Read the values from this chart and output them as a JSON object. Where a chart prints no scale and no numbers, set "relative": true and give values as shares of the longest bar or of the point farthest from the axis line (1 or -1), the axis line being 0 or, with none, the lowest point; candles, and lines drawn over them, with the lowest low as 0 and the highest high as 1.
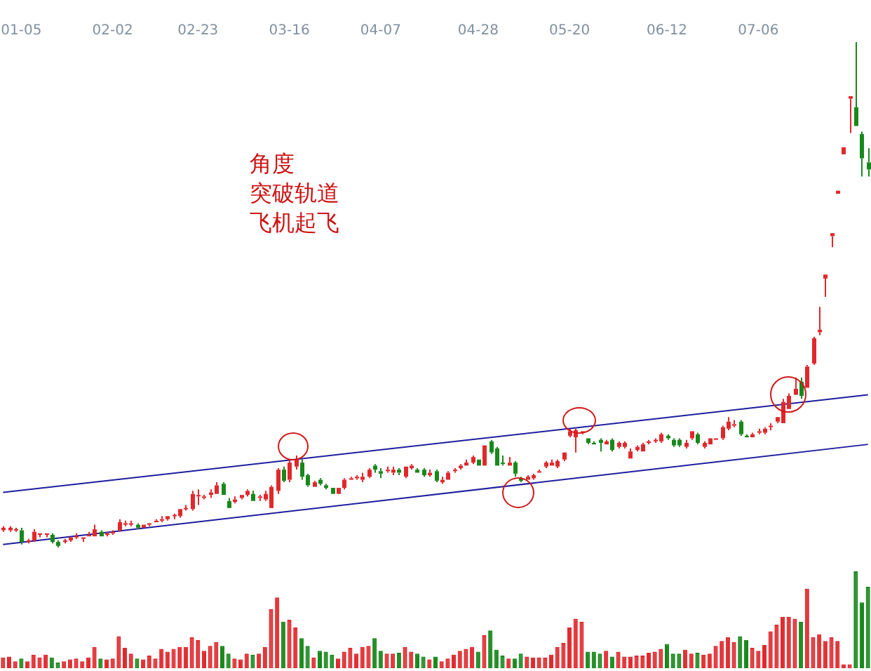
{
  "chart_data": [
    {
      "type": "candlestick",
      "relative": true,
      "annotations": [
        "角度",
        "突破轨道",
        "飞机起飞"
      ],
      "categories": [
        null,
        null,
        null,
        "01-05",
        null,
        null,
        null,
        null,
        null,
        null,
        null,
        null,
        null,
        null,
        null,
        null,
        null,
        null,
        "02-02",
        null,
        null,
        null,
        null,
        null,
        null,
        null,
        null,
        null,
        null,
        null,
        null,
        null,
        "02-23",
        null,
        null,
        null,
        null,
        null,
        null,
        null,
        null,
        null,
        null,
        null,
        null,
        null,
        null,
        "03-16",
        null,
        null,
        null,
        null,
        null,
        null,
        null,
        null,
        null,
        null,
        null,
        null,
        null,
        null,
        "04-07",
        null,
        null,
        null,
        null,
        null,
        null,
        null,
        null,
        null,
        null,
        null,
        null,
        null,
        null,
        null,
        "04-28",
        null,
        null,
        null,
        null,
        null,
        null,
        null,
        null,
        null,
        null,
        null,
        null,
        null,
        null,
        "05-20",
        null,
        null,
        null,
        null,
        null,
        null,
        null,
        null,
        null,
        null,
        null,
        null,
        null,
        null,
        null,
        "06-12",
        null,
        null,
        null,
        null,
        null,
        null,
        null,
        null,
        null,
        null,
        null,
        null,
        null,
        null,
        "07-06",
        null,
        null,
        null,
        null,
        null,
        null,
        null,
        null,
        null,
        null,
        null,
        null,
        null,
        null,
        null,
        null,
        null,
        null
      ],
      "ohlc": [
        [
          0.034,
          0.042,
          0.031,
          0.039
        ],
        [
          0.034,
          0.042,
          0.031,
          0.039
        ],
        [
          0.034,
          0.039,
          0.031,
          0.036
        ],
        [
          0.034,
          0.039,
          0.006,
          0.011
        ],
        [
          0.011,
          0.017,
          0.008,
          0.014
        ],
        [
          0.014,
          0.036,
          0.011,
          0.031
        ],
        [
          0.025,
          0.028,
          0.02,
          0.028
        ],
        [
          0.025,
          0.028,
          0.02,
          0.028
        ],
        [
          0.025,
          0.028,
          0.008,
          0.011
        ],
        [
          0.011,
          0.014,
          0,
          0.003
        ],
        [
          0.011,
          0.017,
          0.008,
          0.014
        ],
        [
          0.014,
          0.022,
          0.011,
          0.02
        ],
        [
          0.02,
          0.028,
          0.017,
          0.022
        ],
        [
          0.017,
          0.022,
          0.011,
          0.02
        ],
        [
          0.022,
          0.031,
          0.02,
          0.025
        ],
        [
          0.022,
          0.045,
          0.02,
          0.036
        ],
        [
          0.031,
          0.034,
          0.02,
          0.022
        ],
        [
          0.025,
          0.031,
          0.022,
          0.028
        ],
        [
          0.028,
          0.034,
          0.025,
          0.031
        ],
        [
          0.034,
          0.056,
          0.031,
          0.05
        ],
        [
          0.045,
          0.053,
          0.042,
          0.048
        ],
        [
          0.045,
          0.053,
          0.042,
          0.048
        ],
        [
          0.045,
          0.048,
          0.036,
          0.039
        ],
        [
          0.039,
          0.045,
          0.039,
          0.045
        ],
        [
          0.045,
          0.05,
          0.042,
          0.048
        ],
        [
          0.05,
          0.056,
          0.048,
          0.053
        ],
        [
          0.053,
          0.062,
          0.05,
          0.056
        ],
        [
          0.056,
          0.064,
          0.053,
          0.062
        ],
        [
          0.062,
          0.067,
          0.056,
          0.064
        ],
        [
          0.062,
          0.078,
          0.059,
          0.076
        ],
        [
          0.076,
          0.084,
          0.073,
          0.078
        ],
        [
          0.076,
          0.112,
          0.073,
          0.106
        ],
        [
          0.101,
          0.115,
          0.084,
          0.104
        ],
        [
          0.098,
          0.104,
          0.095,
          0.101
        ],
        [
          0.104,
          0.115,
          0.098,
          0.109
        ],
        [
          0.106,
          0.129,
          0.104,
          0.123
        ],
        [
          0.126,
          0.129,
          0.104,
          0.104
        ],
        [
          0.092,
          0.098,
          0.076,
          0.078
        ],
        [
          0.09,
          0.101,
          0.087,
          0.095
        ],
        [
          0.098,
          0.106,
          0.095,
          0.104
        ],
        [
          0.104,
          0.115,
          0.101,
          0.112
        ],
        [
          0.106,
          0.112,
          0.09,
          0.092
        ],
        [
          0.098,
          0.104,
          0.092,
          0.101
        ],
        [
          0.095,
          0.112,
          0.092,
          0.106
        ],
        [
          0.078,
          0.123,
          0.076,
          0.12
        ],
        [
          0.112,
          0.157,
          0.106,
          0.154
        ],
        [
          0.154,
          0.16,
          0.129,
          0.132
        ],
        [
          0.134,
          0.174,
          0.129,
          0.168
        ],
        [
          0.16,
          0.182,
          0.154,
          0.174
        ],
        [
          0.168,
          0.174,
          0.134,
          0.14
        ],
        [
          0.143,
          0.146,
          0.12,
          0.123
        ],
        [
          0.12,
          0.132,
          0.118,
          0.129
        ],
        [
          0.134,
          0.137,
          0.123,
          0.126
        ],
        [
          0.123,
          0.126,
          0.115,
          0.118
        ],
        [
          0.118,
          0.12,
          0.104,
          0.106
        ],
        [
          0.106,
          0.12,
          0.104,
          0.118
        ],
        [
          0.118,
          0.137,
          0.115,
          0.134
        ],
        [
          0.134,
          0.14,
          0.132,
          0.137
        ],
        [
          0.137,
          0.143,
          0.134,
          0.14
        ],
        [
          0.134,
          0.148,
          0.129,
          0.14
        ],
        [
          0.14,
          0.157,
          0.137,
          0.154
        ],
        [
          0.162,
          0.165,
          0.148,
          0.154
        ],
        [
          0.151,
          0.157,
          0.137,
          0.146
        ],
        [
          0.151,
          0.16,
          0.148,
          0.154
        ],
        [
          0.148,
          0.16,
          0.143,
          0.154
        ],
        [
          0.154,
          0.157,
          0.143,
          0.148
        ],
        [
          0.14,
          0.162,
          0.137,
          0.16
        ],
        [
          0.157,
          0.165,
          0.154,
          0.162
        ],
        [
          0.154,
          0.157,
          0.146,
          0.148
        ],
        [
          0.154,
          0.157,
          0.14,
          0.143
        ],
        [
          0.143,
          0.154,
          0.14,
          0.148
        ],
        [
          0.151,
          0.154,
          0.129,
          0.132
        ],
        [
          0.129,
          0.14,
          0.126,
          0.134
        ],
        [
          0.134,
          0.151,
          0.132,
          0.148
        ],
        [
          0.151,
          0.157,
          0.148,
          0.154
        ],
        [
          0.157,
          0.165,
          0.154,
          0.162
        ],
        [
          0.162,
          0.174,
          0.16,
          0.168
        ],
        [
          0.168,
          0.182,
          0.165,
          0.179
        ],
        [
          0.174,
          0.176,
          0.16,
          0.162
        ],
        [
          0.162,
          0.204,
          0.16,
          0.202
        ],
        [
          0.21,
          0.213,
          0.185,
          0.188
        ],
        [
          0.196,
          0.199,
          0.16,
          0.162
        ],
        [
          0.168,
          0.182,
          0.162,
          0.165
        ],
        [
          0.162,
          0.179,
          0.16,
          0.168
        ],
        [
          0.168,
          0.171,
          0.14,
          0.146
        ],
        [
          0.137,
          0.14,
          0.129,
          0.132
        ],
        [
          0.134,
          0.143,
          0.132,
          0.14
        ],
        [
          0.137,
          0.146,
          0.134,
          0.143
        ],
        [
          0.148,
          0.154,
          0.146,
          0.151
        ],
        [
          0.16,
          0.171,
          0.157,
          0.168
        ],
        [
          0.162,
          0.174,
          0.16,
          0.168
        ],
        [
          0.16,
          0.174,
          0.157,
          0.171
        ],
        [
          0.174,
          0.19,
          0.171,
          0.188
        ],
        [
          0.221,
          0.235,
          0.218,
          0.23
        ],
        [
          0.218,
          0.235,
          0.188,
          0.232
        ],
        [
          0.227,
          0.232,
          0.224,
          0.23
        ],
        [
          0.216,
          0.218,
          0.204,
          0.207
        ],
        [
          0.207,
          0.21,
          0.202,
          0.204
        ],
        [
          0.213,
          0.216,
          0.19,
          0.207
        ],
        [
          0.204,
          0.213,
          0.202,
          0.21
        ],
        [
          0.213,
          0.216,
          0.19,
          0.193
        ],
        [
          0.199,
          0.21,
          0.196,
          0.207
        ],
        [
          0.199,
          0.21,
          0.196,
          0.207
        ],
        [
          0.176,
          0.196,
          0.174,
          0.19
        ],
        [
          0.193,
          0.202,
          0.19,
          0.199
        ],
        [
          0.19,
          0.207,
          0.188,
          0.204
        ],
        [
          0.207,
          0.213,
          0.204,
          0.21
        ],
        [
          0.21,
          0.216,
          0.207,
          0.213
        ],
        [
          0.21,
          0.227,
          0.207,
          0.224
        ],
        [
          0.221,
          0.224,
          0.213,
          0.216
        ],
        [
          0.213,
          0.216,
          0.199,
          0.202
        ],
        [
          0.213,
          0.216,
          0.199,
          0.202
        ],
        [
          0.199,
          0.213,
          0.196,
          0.207
        ],
        [
          0.216,
          0.232,
          0.213,
          0.23
        ],
        [
          0.224,
          0.227,
          0.204,
          0.207
        ],
        [
          0.199,
          0.21,
          0.196,
          0.207
        ],
        [
          0.204,
          0.218,
          0.202,
          0.216
        ],
        [
          0.213,
          0.218,
          0.213,
          0.216
        ],
        [
          0.216,
          0.241,
          0.213,
          0.238
        ],
        [
          0.235,
          0.258,
          0.232,
          0.249
        ],
        [
          0.241,
          0.252,
          0.238,
          0.244
        ],
        [
          0.249,
          0.252,
          0.221,
          0.224
        ],
        [
          0.221,
          0.224,
          0.218,
          0.218
        ],
        [
          0.218,
          0.227,
          0.216,
          0.224
        ],
        [
          0.227,
          0.235,
          0.224,
          0.23
        ],
        [
          0.227,
          0.238,
          0.224,
          0.235
        ],
        [
          0.238,
          0.246,
          0.232,
          0.241
        ],
        [
          0.249,
          0.26,
          0.246,
          0.258
        ],
        [
          0.246,
          0.294,
          0.244,
          0.288
        ],
        [
          0.274,
          0.305,
          0.272,
          0.3
        ],
        [
          0.302,
          0.336,
          0.3,
          0.314
        ],
        [
          0.328,
          0.336,
          0.294,
          0.3
        ],
        [
          0.316,
          0.361,
          0.314,
          0.358
        ],
        [
          0.364,
          0.417,
          0.361,
          0.414
        ],
        [
          0.426,
          0.476,
          0.42,
          0.431
        ],
        [
          0.532,
          0.54,
          0.496,
          0.54
        ],
        [
          0.616,
          0.622,
          0.594,
          0.622
        ],
        [
          0.7,
          0.706,
          0.7,
          0.706
        ],
        [
          0.778,
          0.792,
          0.778,
          0.792
        ],
        [
          0.888,
          0.893,
          0.82,
          0.893
        ],
        [
          0.871,
          1,
          0.834,
          0.834
        ],
        [
          0.818,
          0.823,
          0.734,
          0.77
        ],
        [
          0.762,
          0.79,
          0.734,
          0.748
        ]
      ],
      "colors": [
        "#e0282c",
        "#e0282c",
        "#e0282c",
        "#18881c",
        "#e0282c",
        "#e0282c",
        "#e0282c",
        "#e0282c",
        "#18881c",
        "#18881c",
        "#e0282c",
        "#e0282c",
        "#e0282c",
        "#e0282c",
        "#e0282c",
        "#e0282c",
        "#18881c",
        "#e0282c",
        "#e0282c",
        "#e0282c",
        "#e0282c",
        "#e0282c",
        "#18881c",
        "#e0282c",
        "#e0282c",
        "#e0282c",
        "#e0282c",
        "#e0282c",
        "#e0282c",
        "#e0282c",
        "#e0282c",
        "#e0282c",
        "#e0282c",
        "#e0282c",
        "#e0282c",
        "#e0282c",
        "#18881c",
        "#18881c",
        "#e0282c",
        "#e0282c",
        "#e0282c",
        "#18881c",
        "#e0282c",
        "#e0282c",
        "#e0282c",
        "#e0282c",
        "#18881c",
        "#e0282c",
        "#e0282c",
        "#18881c",
        "#18881c",
        "#e0282c",
        "#18881c",
        "#18881c",
        "#18881c",
        "#e0282c",
        "#e0282c",
        "#e0282c",
        "#e0282c",
        "#e0282c",
        "#e0282c",
        "#18881c",
        "#18881c",
        "#e0282c",
        "#e0282c",
        "#18881c",
        "#e0282c",
        "#e0282c",
        "#18881c",
        "#18881c",
        "#e0282c",
        "#18881c",
        "#e0282c",
        "#e0282c",
        "#e0282c",
        "#e0282c",
        "#e0282c",
        "#e0282c",
        "#18881c",
        "#e0282c",
        "#18881c",
        "#18881c",
        "#18881c",
        "#e0282c",
        "#18881c",
        "#18881c",
        "#e0282c",
        "#e0282c",
        "#e0282c",
        "#e0282c",
        "#e0282c",
        "#e0282c",
        "#e0282c",
        "#e0282c",
        "#e0282c",
        "#e0282c",
        "#18881c",
        "#18881c",
        "#18881c",
        "#e0282c",
        "#18881c",
        "#e0282c",
        "#e0282c",
        "#e0282c",
        "#e0282c",
        "#e0282c",
        "#e0282c",
        "#e0282c",
        "#e0282c",
        "#18881c",
        "#18881c",
        "#18881c",
        "#e0282c",
        "#e0282c",
        "#18881c",
        "#e0282c",
        "#e0282c",
        "#e0282c",
        "#e0282c",
        "#e0282c",
        "#e0282c",
        "#18881c",
        "#18881c",
        "#e0282c",
        "#e0282c",
        "#e0282c",
        "#e0282c",
        "#e0282c",
        "#e0282c",
        "#e0282c",
        "#e0282c",
        "#18881c",
        "#e0282c",
        "#e0282c",
        "#e0282c",
        "#e0282c",
        "#e0282c",
        "#e0282c",
        "#e0282c",
        "#e0282c",
        "#18881c",
        "#18881c",
        "#18881c"
      ],
      "series": [
        {
          "type": "line",
          "color": "#1e1ea0",
          "values": [
            0.109,
            null,
            null,
            null,
            null,
            null,
            null,
            null,
            null,
            null,
            null,
            null,
            null,
            null,
            null,
            null,
            null,
            null,
            null,
            null,
            null,
            null,
            null,
            null,
            null,
            null,
            null,
            null,
            null,
            null,
            null,
            null,
            null,
            null,
            null,
            null,
            null,
            null,
            null,
            null,
            null,
            null,
            null,
            null,
            null,
            null,
            null,
            null,
            null,
            null,
            null,
            null,
            null,
            null,
            null,
            null,
            null,
            null,
            null,
            null,
            null,
            null,
            null,
            null,
            null,
            null,
            null,
            null,
            null,
            null,
            null,
            null,
            null,
            null,
            null,
            null,
            null,
            null,
            null,
            null,
            null,
            null,
            null,
            null,
            null,
            null,
            null,
            null,
            null,
            null,
            null,
            null,
            null,
            null,
            null,
            null,
            null,
            null,
            null,
            null,
            null,
            null,
            null,
            null,
            null,
            null,
            null,
            null,
            null,
            null,
            null,
            null,
            null,
            null,
            null,
            null,
            null,
            null,
            null,
            null,
            null,
            null,
            null,
            null,
            null,
            null,
            null,
            null,
            null,
            null,
            null,
            null,
            null,
            null,
            null,
            null,
            null,
            null,
            null,
            null,
            null,
            null,
            0.302
          ]
        },
        {
          "type": "line",
          "color": "#1e1ea0",
          "values": [
            0.006,
            null,
            null,
            null,
            null,
            null,
            null,
            null,
            null,
            null,
            null,
            null,
            null,
            null,
            null,
            null,
            null,
            null,
            null,
            null,
            null,
            null,
            null,
            null,
            null,
            null,
            null,
            null,
            null,
            null,
            null,
            null,
            null,
            null,
            null,
            null,
            null,
            null,
            null,
            null,
            null,
            null,
            null,
            null,
            null,
            null,
            null,
            null,
            null,
            null,
            null,
            null,
            null,
            null,
            null,
            null,
            null,
            null,
            null,
            null,
            null,
            null,
            null,
            null,
            null,
            null,
            null,
            null,
            null,
            null,
            null,
            null,
            null,
            null,
            null,
            null,
            null,
            null,
            null,
            null,
            null,
            null,
            null,
            null,
            null,
            null,
            null,
            null,
            null,
            null,
            null,
            null,
            null,
            null,
            null,
            null,
            null,
            null,
            null,
            null,
            null,
            null,
            null,
            null,
            null,
            null,
            null,
            null,
            null,
            null,
            null,
            null,
            null,
            null,
            null,
            null,
            null,
            null,
            null,
            null,
            null,
            null,
            null,
            null,
            null,
            null,
            null,
            null,
            null,
            null,
            null,
            null,
            null,
            null,
            null,
            null,
            null,
            null,
            null,
            null,
            null,
            null,
            0.204
          ]
        }
      ]
    },
    {
      "type": "bar",
      "relative": true,
      "categories": [
        null,
        null,
        null,
        null,
        null,
        null,
        null,
        null,
        null,
        null,
        null,
        null,
        null,
        null,
        null,
        null,
        null,
        null,
        null,
        null,
        null,
        null,
        null,
        null,
        null,
        null,
        null,
        null,
        null,
        null,
        null,
        null,
        null,
        null,
        null,
        null,
        null,
        null,
        null,
        null,
        null,
        null,
        null,
        null,
        null,
        null,
        null,
        null,
        null,
        null,
        null,
        null,
        null,
        null,
        null,
        null,
        null,
        null,
        null,
        null,
        null,
        null,
        null,
        null,
        null,
        null,
        null,
        null,
        null,
        null,
        null,
        null,
        null,
        null,
        null,
        null,
        null,
        null,
        null,
        null,
        null,
        null,
        null,
        null,
        null,
        null,
        null,
        null,
        null,
        null,
        null,
        null,
        null,
        null,
        null,
        null,
        null,
        null,
        null,
        null,
        null,
        null,
        null,
        null,
        null,
        null,
        null,
        null,
        null,
        null,
        null,
        null,
        null,
        null,
        null,
        null,
        null,
        null,
        null,
        null,
        null,
        null,
        null,
        null,
        null,
        null,
        null,
        null,
        null,
        null,
        null,
        null,
        null,
        null,
        null,
        null,
        null,
        null,
        null,
        null,
        null,
        null,
        null
      ],
      "values": [
        0.11,
        0.12,
        0.07,
        0.1,
        0.07,
        0.14,
        0.11,
        0.14,
        0.11,
        0.06,
        0.07,
        0.09,
        0.1,
        0.07,
        0.11,
        0.22,
        0.1,
        0.09,
        0.1,
        0.33,
        0.21,
        0.15,
        0.1,
        0.09,
        0.13,
        0.1,
        0.2,
        0.17,
        0.2,
        0.22,
        0.22,
        0.32,
        0.29,
        0.18,
        0.23,
        0.27,
        0.23,
        0.15,
        0.1,
        0.09,
        0.15,
        0.14,
        0.15,
        0.22,
        0.61,
        0.73,
        0.48,
        0.5,
        0.42,
        0.31,
        0.23,
        0.11,
        0.18,
        0.17,
        0.14,
        0.1,
        0.17,
        0.21,
        0.15,
        0.22,
        0.23,
        0.31,
        0.18,
        0.15,
        0.15,
        0.16,
        0.22,
        0.17,
        0.15,
        0.12,
        0.09,
        0.12,
        0.07,
        0.1,
        0.14,
        0.18,
        0.2,
        0.22,
        0.17,
        0.34,
        0.39,
        0.19,
        0.13,
        0.1,
        0.1,
        0.15,
        0.12,
        0.11,
        0.11,
        0.11,
        0.14,
        0.22,
        0.26,
        0.42,
        0.51,
        0.48,
        0.17,
        0.17,
        0.15,
        0.18,
        0.12,
        0.17,
        0.12,
        0.12,
        0.13,
        0.13,
        0.16,
        0.17,
        0.2,
        0.25,
        0.15,
        0.15,
        0.19,
        0.15,
        0.16,
        0.14,
        0.15,
        0.23,
        0.28,
        0.32,
        0.27,
        0.33,
        0.29,
        0.21,
        0.18,
        0.24,
        0.38,
        0.45,
        0.53,
        0.53,
        0.51,
        0.48,
        0.82,
        0.32,
        0.35,
        0.28,
        0.32,
        0.28,
        0.04,
        0.04,
        1,
        0.68,
        0.84
      ],
      "colors": [
        "#e0282c",
        "#e0282c",
        "#e0282c",
        "#18881c",
        "#e0282c",
        "#e0282c",
        "#e0282c",
        "#e0282c",
        "#18881c",
        "#18881c",
        "#e0282c",
        "#e0282c",
        "#e0282c",
        "#e0282c",
        "#e0282c",
        "#e0282c",
        "#18881c",
        "#e0282c",
        "#e0282c",
        "#e0282c",
        "#e0282c",
        "#e0282c",
        "#18881c",
        "#e0282c",
        "#e0282c",
        "#e0282c",
        "#e0282c",
        "#e0282c",
        "#e0282c",
        "#e0282c",
        "#e0282c",
        "#e0282c",
        "#e0282c",
        "#e0282c",
        "#e0282c",
        "#e0282c",
        "#18881c",
        "#18881c",
        "#e0282c",
        "#e0282c",
        "#e0282c",
        "#18881c",
        "#e0282c",
        "#e0282c",
        "#e0282c",
        "#e0282c",
        "#18881c",
        "#e0282c",
        "#e0282c",
        "#18881c",
        "#18881c",
        "#e0282c",
        "#18881c",
        "#18881c",
        "#18881c",
        "#e0282c",
        "#e0282c",
        "#e0282c",
        "#e0282c",
        "#e0282c",
        "#e0282c",
        "#18881c",
        "#18881c",
        "#e0282c",
        "#e0282c",
        "#18881c",
        "#e0282c",
        "#e0282c",
        "#18881c",
        "#18881c",
        "#e0282c",
        "#18881c",
        "#e0282c",
        "#e0282c",
        "#e0282c",
        "#e0282c",
        "#e0282c",
        "#e0282c",
        "#18881c",
        "#e0282c",
        "#18881c",
        "#18881c",
        "#18881c",
        "#e0282c",
        "#18881c",
        "#18881c",
        "#e0282c",
        "#e0282c",
        "#e0282c",
        "#e0282c",
        "#e0282c",
        "#e0282c",
        "#e0282c",
        "#e0282c",
        "#e0282c",
        "#e0282c",
        "#18881c",
        "#18881c",
        "#18881c",
        "#e0282c",
        "#18881c",
        "#e0282c",
        "#e0282c",
        "#e0282c",
        "#e0282c",
        "#e0282c",
        "#e0282c",
        "#e0282c",
        "#e0282c",
        "#18881c",
        "#18881c",
        "#18881c",
        "#e0282c",
        "#e0282c",
        "#18881c",
        "#e0282c",
        "#e0282c",
        "#e0282c",
        "#e0282c",
        "#e0282c",
        "#e0282c",
        "#18881c",
        "#18881c",
        "#e0282c",
        "#e0282c",
        "#e0282c",
        "#e0282c",
        "#e0282c",
        "#e0282c",
        "#e0282c",
        "#e0282c",
        "#18881c",
        "#e0282c",
        "#e0282c",
        "#e0282c",
        "#e0282c",
        "#e0282c",
        "#e0282c",
        "#e0282c",
        "#e0282c",
        "#18881c",
        "#18881c",
        "#18881c"
      ]
    }
  ]
}
